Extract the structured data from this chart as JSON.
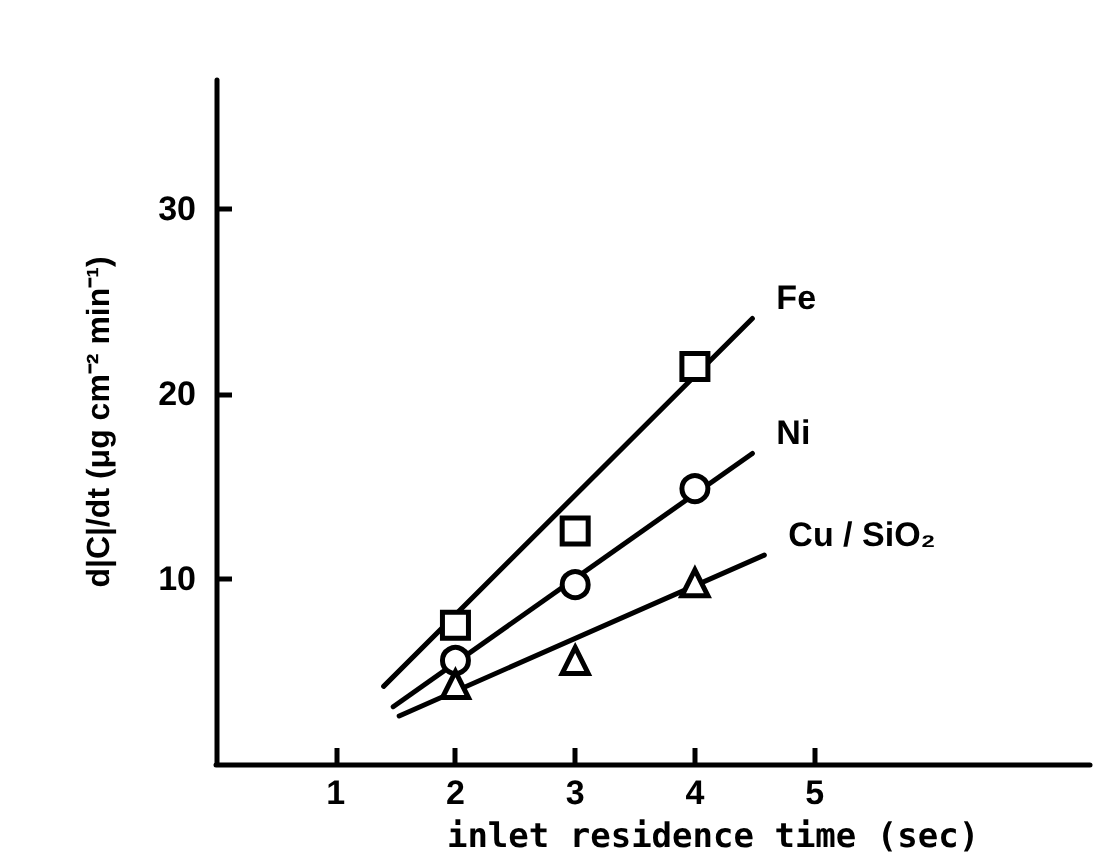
{
  "chart_data": {
    "type": "scatter",
    "xlabel": "inlet residence time (sec)",
    "ylabel": "d|C|/dt (μg cm⁻² min⁻¹)",
    "xlim": [
      0,
      7.3
    ],
    "xticks": [
      1,
      2,
      3,
      4,
      5
    ],
    "ylim": [
      0,
      37
    ],
    "yticks": [
      10,
      20,
      30
    ],
    "grid": false,
    "legend": false,
    "series": [
      {
        "marker": "square",
        "color": "#000000",
        "x": [
          2,
          3,
          4
        ],
        "values": [
          7.5,
          12.6,
          21.5
        ]
      },
      {
        "marker": "circle",
        "color": "#000000",
        "x": [
          2,
          3,
          4
        ],
        "values": [
          5.6,
          9.7,
          14.9
        ]
      },
      {
        "marker": "triangle",
        "color": "#000000",
        "x": [
          2,
          3,
          4
        ],
        "values": [
          4.3,
          5.6,
          9.8
        ]
      },
      {
        "type": "line",
        "name": "Fe",
        "marker": "none",
        "line_style": "solid",
        "color": "#000000",
        "x": [
          1.4,
          4.48
        ],
        "values": [
          4.2,
          24.1
        ]
      },
      {
        "type": "line",
        "name": "Ni",
        "marker": "none",
        "line_style": "solid",
        "color": "#000000",
        "x": [
          1.48,
          4.48
        ],
        "values": [
          3.1,
          16.8
        ]
      },
      {
        "type": "line",
        "name": "Cu / SiO₂",
        "marker": "none",
        "line_style": "solid",
        "color": "#000000",
        "x": [
          1.53,
          4.58
        ],
        "values": [
          2.6,
          11.3
        ]
      }
    ]
  }
}
